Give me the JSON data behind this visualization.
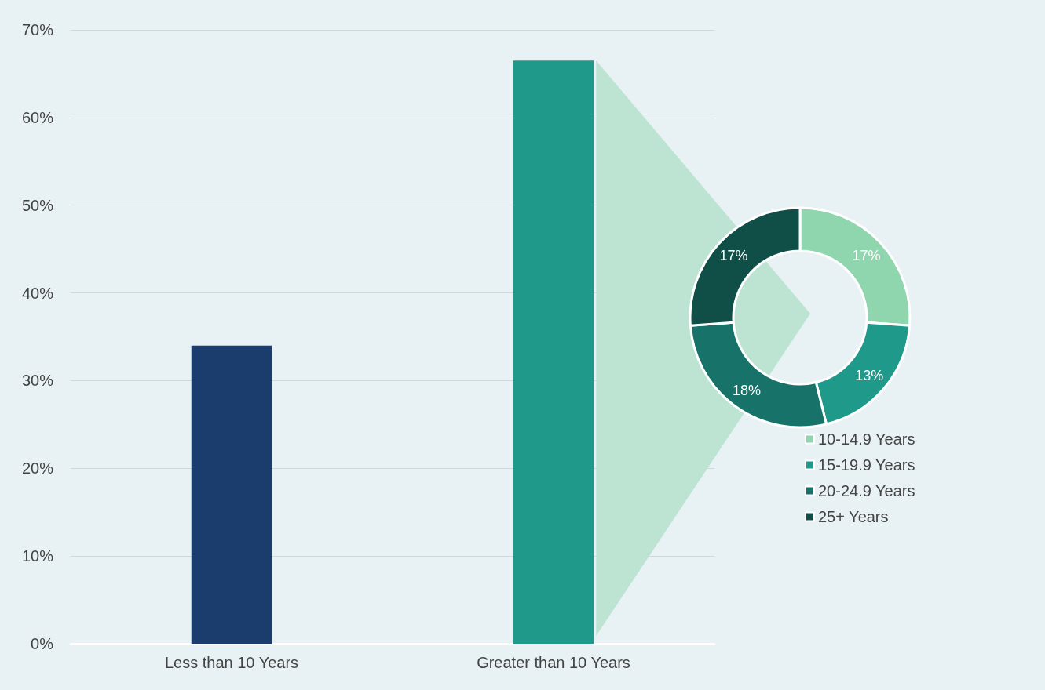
{
  "chart_data": [
    {
      "type": "bar",
      "categories": [
        "Less than 10 Years",
        "Greater than 10 Years"
      ],
      "values": [
        34,
        66.5
      ],
      "colors": [
        "#1a3d6d",
        "#1f9a8a"
      ],
      "ylim": [
        0,
        70
      ],
      "yticks": [
        {
          "value": 0,
          "label": "0%"
        },
        {
          "value": 10,
          "label": "10%"
        },
        {
          "value": 20,
          "label": "20%"
        },
        {
          "value": 30,
          "label": "30%"
        },
        {
          "value": 40,
          "label": "40%"
        },
        {
          "value": 50,
          "label": "50%"
        },
        {
          "value": 60,
          "label": "60%"
        },
        {
          "value": 70,
          "label": "70%"
        }
      ],
      "grid": "y",
      "legend": false
    },
    {
      "type": "donut",
      "categories": [
        "10-14.9 Years",
        "15-19.9 Years",
        "20-24.9 Years",
        "25+ Years"
      ],
      "values": [
        17,
        13,
        18,
        17
      ],
      "colors": [
        "#8fd5ad",
        "#1f9a8a",
        "#17726a",
        "#0f4f48"
      ],
      "value_labels": [
        "17%",
        "13%",
        "18%",
        "17%"
      ],
      "legend": "bottom right"
    }
  ]
}
